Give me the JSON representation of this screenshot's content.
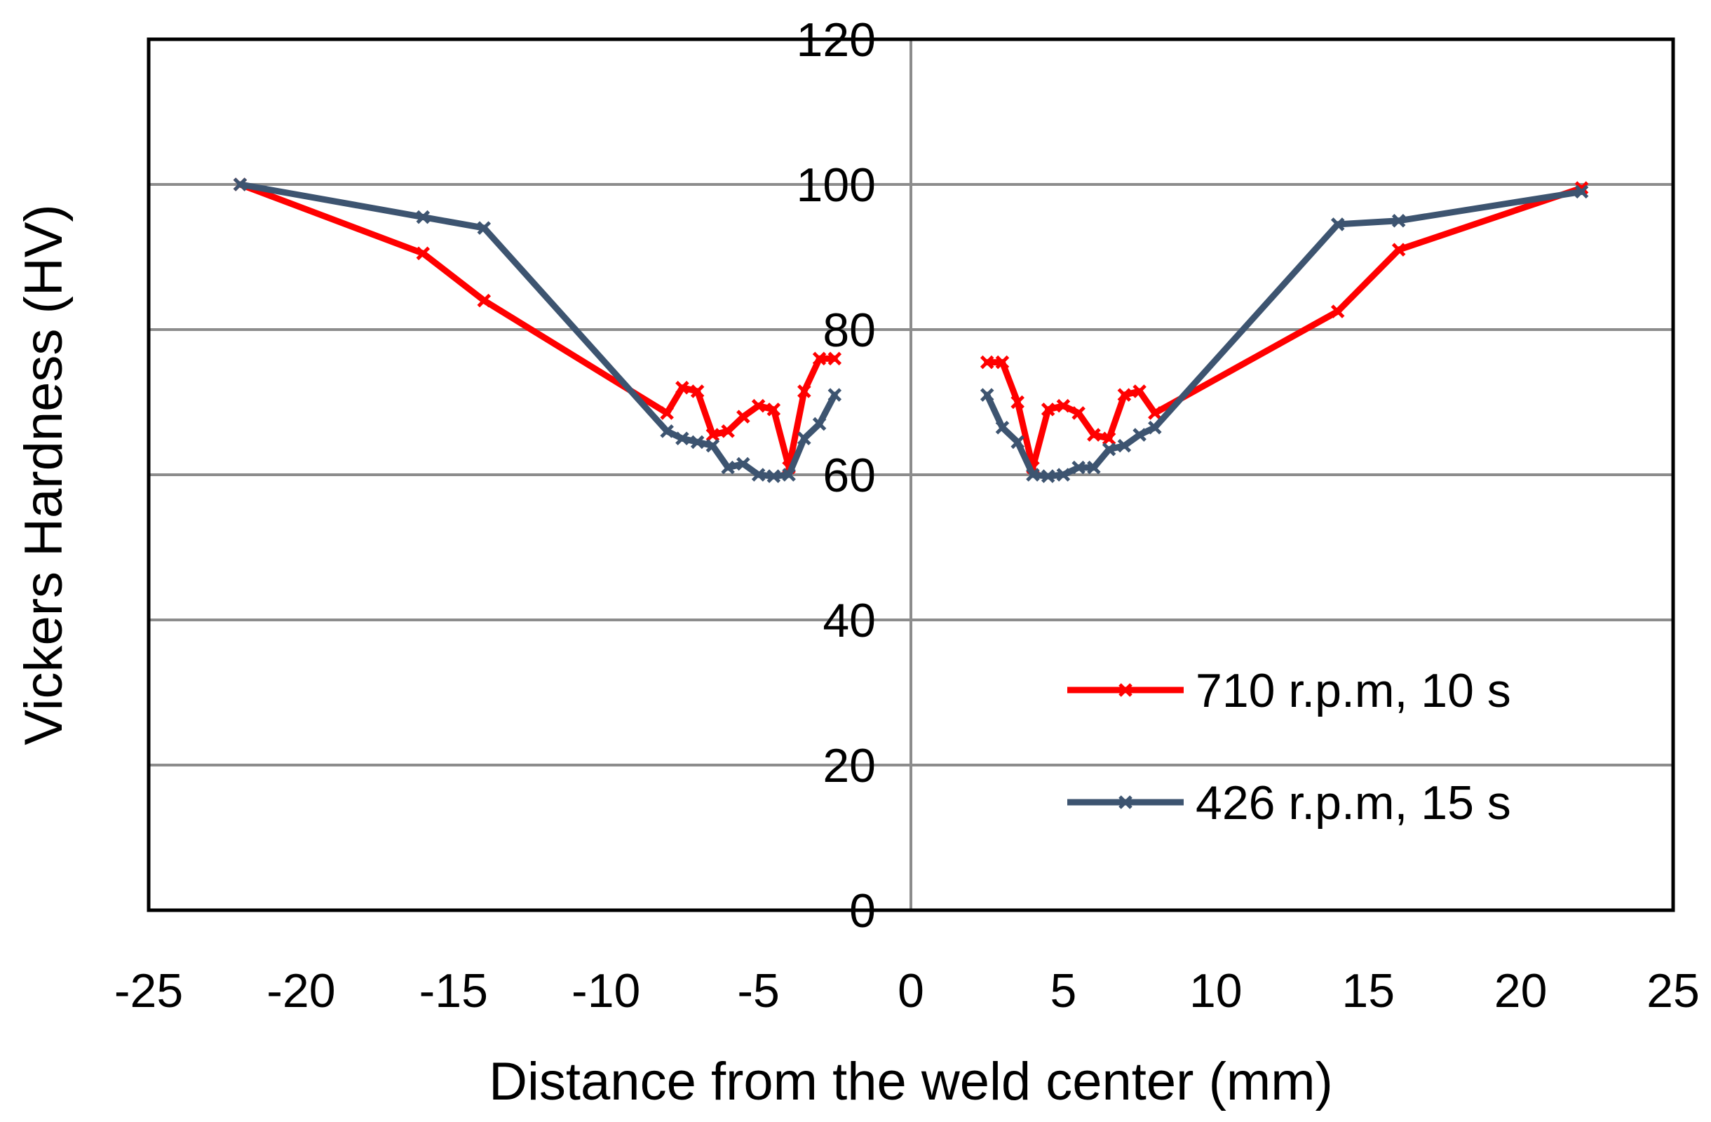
{
  "chart_data": {
    "type": "line",
    "title": "",
    "xlabel": "Distance from the weld center (mm)",
    "ylabel": "Vickers Hardness (HV)",
    "xlim": [
      -25,
      25
    ],
    "ylim": [
      0,
      120
    ],
    "xticks": [
      -25,
      -20,
      -15,
      -10,
      -5,
      0,
      5,
      10,
      15,
      20,
      25
    ],
    "yticks": [
      0,
      20,
      40,
      60,
      80,
      100,
      120
    ],
    "grid": "horizontal",
    "legend_position": "bottom-right",
    "series": [
      {
        "name": "710 r.p.m, 10 s",
        "color": "#ff0000",
        "segments": [
          [
            [
              -22,
              100
            ],
            [
              -16,
              90.5
            ],
            [
              -14,
              84
            ],
            [
              -8,
              68.5
            ],
            [
              -7.5,
              72
            ],
            [
              -7,
              71.5
            ],
            [
              -6.5,
              65.5
            ],
            [
              -6,
              66
            ],
            [
              -5.5,
              68
            ],
            [
              -5,
              69.5
            ],
            [
              -4.5,
              69
            ],
            [
              -4,
              61
            ],
            [
              -3.5,
              71.5
            ],
            [
              -3,
              76
            ],
            [
              -2.5,
              76
            ]
          ],
          [
            [
              2.5,
              75.5
            ],
            [
              3,
              75.5
            ],
            [
              3.5,
              70
            ],
            [
              4,
              61
            ],
            [
              4.5,
              69
            ],
            [
              5,
              69.5
            ],
            [
              5.5,
              68.5
            ],
            [
              6,
              65.5
            ],
            [
              6.5,
              65
            ],
            [
              7,
              71
            ],
            [
              7.5,
              71.5
            ],
            [
              8,
              68.5
            ],
            [
              14,
              82.5
            ],
            [
              16,
              91
            ],
            [
              22,
              99.5
            ]
          ]
        ]
      },
      {
        "name": "426 r.p.m, 15 s",
        "color": "#3d5470",
        "segments": [
          [
            [
              -22,
              100
            ],
            [
              -16,
              95.5
            ],
            [
              -14,
              94
            ],
            [
              -8,
              66
            ],
            [
              -7.5,
              65
            ],
            [
              -7,
              64.5
            ],
            [
              -6.5,
              64
            ],
            [
              -6,
              61
            ],
            [
              -5.5,
              61.5
            ],
            [
              -5,
              60
            ],
            [
              -4.5,
              59.8
            ],
            [
              -4,
              60
            ],
            [
              -3.5,
              65
            ],
            [
              -3,
              67
            ],
            [
              -2.5,
              71
            ]
          ],
          [
            [
              2.5,
              71
            ],
            [
              3,
              66.5
            ],
            [
              3.5,
              64.5
            ],
            [
              4,
              60
            ],
            [
              4.5,
              59.8
            ],
            [
              5,
              60
            ],
            [
              5.5,
              61
            ],
            [
              6,
              61
            ],
            [
              6.5,
              63.5
            ],
            [
              7,
              64
            ],
            [
              7.5,
              65.5
            ],
            [
              8,
              66.5
            ],
            [
              14,
              94.5
            ],
            [
              16,
              95
            ],
            [
              22,
              99
            ]
          ]
        ]
      }
    ]
  }
}
